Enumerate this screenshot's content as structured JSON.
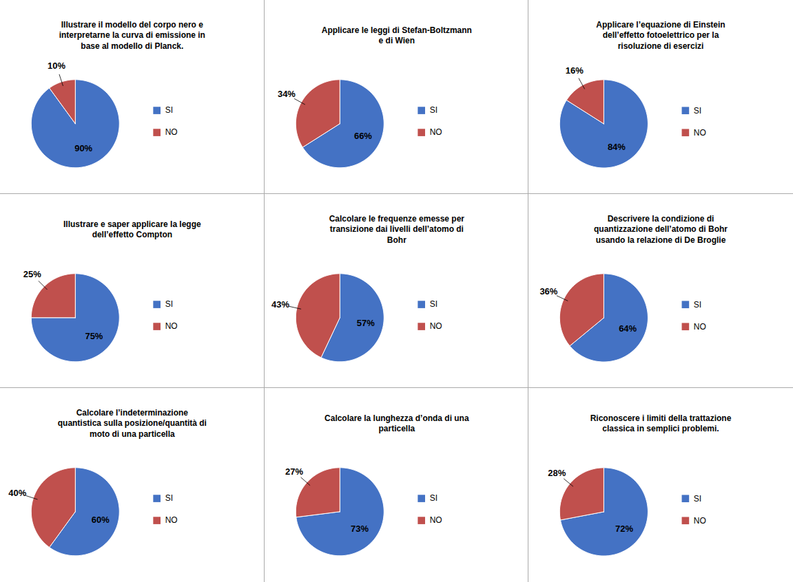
{
  "chart_data": [
    {
      "type": "pie",
      "title": "Illustrare il modello del corpo nero e\ninterpretarne la curva di emissione in\nbase al modello di Planck.",
      "categories": [
        "SI",
        "NO"
      ],
      "values": [
        90,
        10
      ],
      "value_labels": [
        "90%",
        "10%"
      ],
      "colors": [
        "#4472C4",
        "#C0504D"
      ],
      "data_labels": true,
      "legend": "right"
    },
    {
      "type": "pie",
      "title": "Applicare le leggi di Stefan-Boltzmann\ne di Wien",
      "categories": [
        "SI",
        "NO"
      ],
      "values": [
        66,
        34
      ],
      "value_labels": [
        "66%",
        "34%"
      ],
      "colors": [
        "#4472C4",
        "#C0504D"
      ],
      "data_labels": true,
      "legend": "right"
    },
    {
      "type": "pie",
      "title": "Applicare l’equazione di Einstein\ndell’effetto fotoelettrico per la\nrisoluzione di esercizi",
      "categories": [
        "SI",
        "NO"
      ],
      "values": [
        84,
        16
      ],
      "value_labels": [
        "84%",
        "16%"
      ],
      "colors": [
        "#4472C4",
        "#C0504D"
      ],
      "data_labels": true,
      "legend": "right"
    },
    {
      "type": "pie",
      "title": "Illustrare e saper applicare la legge\ndell’effetto Compton",
      "categories": [
        "SI",
        "NO"
      ],
      "values": [
        75,
        25
      ],
      "value_labels": [
        "75%",
        "25%"
      ],
      "colors": [
        "#4472C4",
        "#C0504D"
      ],
      "data_labels": true,
      "legend": "right"
    },
    {
      "type": "pie",
      "title": "Calcolare le frequenze emesse per\ntransizione dai livelli dell’atomo di\nBohr",
      "categories": [
        "SI",
        "NO"
      ],
      "values": [
        57,
        43
      ],
      "value_labels": [
        "57%",
        "43%"
      ],
      "colors": [
        "#4472C4",
        "#C0504D"
      ],
      "data_labels": true,
      "legend": "right"
    },
    {
      "type": "pie",
      "title": "Descrivere la condizione di\nquantizzazione dell’atomo di Bohr\nusando la relazione di De Broglie",
      "categories": [
        "SI",
        "NO"
      ],
      "values": [
        64,
        36
      ],
      "value_labels": [
        "64%",
        "36%"
      ],
      "colors": [
        "#4472C4",
        "#C0504D"
      ],
      "data_labels": true,
      "legend": "right"
    },
    {
      "type": "pie",
      "title": "Calcolare l’indeterminazione\nquantistica sulla posizione/quantità di\nmoto di una particella",
      "categories": [
        "SI",
        "NO"
      ],
      "values": [
        60,
        40
      ],
      "value_labels": [
        "60%",
        "40%"
      ],
      "colors": [
        "#4472C4",
        "#C0504D"
      ],
      "data_labels": true,
      "legend": "right"
    },
    {
      "type": "pie",
      "title": "Calcolare la lunghezza d’onda di una\nparticella",
      "categories": [
        "SI",
        "NO"
      ],
      "values": [
        73,
        27
      ],
      "value_labels": [
        "73%",
        "27%"
      ],
      "colors": [
        "#4472C4",
        "#C0504D"
      ],
      "data_labels": true,
      "legend": "right"
    },
    {
      "type": "pie",
      "title": "Riconoscere i limiti della trattazione\nclassica in semplici problemi.",
      "categories": [
        "SI",
        "NO"
      ],
      "values": [
        72,
        28
      ],
      "value_labels": [
        "72%",
        "28%"
      ],
      "colors": [
        "#4472C4",
        "#C0504D"
      ],
      "data_labels": true,
      "legend": "right"
    }
  ]
}
